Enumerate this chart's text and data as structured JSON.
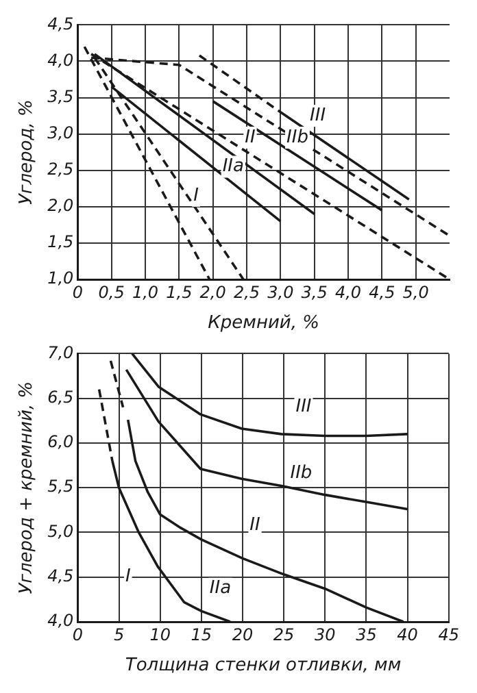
{
  "chart_data": [
    {
      "type": "line",
      "xlabel": "Кремний, %",
      "ylabel": "Углерод, %",
      "xlim": [
        0,
        5.5
      ],
      "ylim": [
        1.0,
        4.5
      ],
      "xticks": [
        0,
        {
          "value": 0.5,
          "label": "0,5"
        },
        {
          "value": 1.0,
          "label": "1,0"
        },
        {
          "value": 1.5,
          "label": "1,5"
        },
        {
          "value": 2.0,
          "label": "2,0"
        },
        {
          "value": 2.5,
          "label": "2,5"
        },
        {
          "value": 3.0,
          "label": "3,0"
        },
        {
          "value": 3.5,
          "label": "3,5"
        },
        {
          "value": 4.0,
          "label": "4,0"
        },
        {
          "value": 4.5,
          "label": "4,5"
        },
        {
          "value": 5.0,
          "label": "5,0"
        }
      ],
      "yticks": [
        {
          "value": 1.0,
          "label": "1,0"
        },
        {
          "value": 1.5,
          "label": "1,5"
        },
        {
          "value": 2.0,
          "label": "2,0"
        },
        {
          "value": 2.5,
          "label": "2,5"
        },
        {
          "value": 3.0,
          "label": "3,0"
        },
        {
          "value": 3.5,
          "label": "3,5"
        },
        {
          "value": 4.0,
          "label": "4,0"
        },
        {
          "value": 4.5,
          "label": "4,5"
        }
      ],
      "grid": true,
      "legend": false,
      "marker": "none",
      "series": [
        {
          "color": "#1a1a1a",
          "line_style": "dashed",
          "x": [
            0.1,
            1.95
          ],
          "values": [
            4.2,
            1.0
          ]
        },
        {
          "color": "#1a1a1a",
          "line_style": "dashed",
          "x": [
            0.25,
            2.45
          ],
          "values": [
            4.05,
            1.0
          ]
        },
        {
          "color": "#1a1a1a",
          "line_style": "solid",
          "x": [
            0.5,
            3.0
          ],
          "values": [
            3.65,
            1.8
          ]
        },
        {
          "color": "#1a1a1a",
          "line_style": "solid",
          "x": [
            0.25,
            3.5
          ],
          "values": [
            4.1,
            1.9
          ]
        },
        {
          "color": "#1a1a1a",
          "line_style": "dashed",
          "x": [
            0.2,
            5.5
          ],
          "values": [
            4.1,
            1.0
          ]
        },
        {
          "color": "#1a1a1a",
          "line_style": "dashed",
          "x": [
            0.2,
            1.5,
            5.5
          ],
          "values": [
            4.05,
            3.95,
            1.6
          ]
        },
        {
          "color": "#1a1a1a",
          "line_style": "solid",
          "x": [
            2.0,
            4.5
          ],
          "values": [
            3.45,
            1.95
          ]
        },
        {
          "color": "#1a1a1a",
          "line_style": "dashed",
          "x": [
            1.8,
            3.0
          ],
          "values": [
            4.08,
            3.3
          ]
        },
        {
          "color": "#1a1a1a",
          "line_style": "solid",
          "x": [
            3.0,
            4.9
          ],
          "values": [
            3.3,
            2.1
          ]
        }
      ],
      "annotations": [
        {
          "text": "I",
          "x": 1.75,
          "y": 2.15
        },
        {
          "text": "IIa",
          "x": 2.3,
          "y": 2.55
        },
        {
          "text": "II",
          "x": 2.55,
          "y": 2.95
        },
        {
          "text": "IIb",
          "x": 3.25,
          "y": 2.95
        },
        {
          "text": "III",
          "x": 3.55,
          "y": 3.25
        }
      ]
    },
    {
      "type": "line",
      "xlabel": "Толщина стенки отливки, мм",
      "ylabel": "Углерод + кремний, %",
      "xlim": [
        0,
        45
      ],
      "ylim": [
        4.0,
        7.0
      ],
      "xticks": [
        0,
        5,
        10,
        15,
        20,
        25,
        30,
        35,
        40,
        45
      ],
      "yticks": [
        {
          "value": 4.0,
          "label": "4,0"
        },
        {
          "value": 4.5,
          "label": "4,5"
        },
        {
          "value": 5.0,
          "label": "5,0"
        },
        {
          "value": 5.5,
          "label": "5,5"
        },
        {
          "value": 6.0,
          "label": "6,0"
        },
        {
          "value": 6.5,
          "label": "6,5"
        },
        {
          "value": 7.0,
          "label": "7,0"
        }
      ],
      "grid": true,
      "legend": false,
      "marker": "none",
      "series": [
        {
          "color": "#1a1a1a",
          "line_style": "dashed",
          "x": [
            2.6,
            4.2
          ],
          "values": [
            6.6,
            5.8
          ]
        },
        {
          "color": "#1a1a1a",
          "line_style": "solid",
          "x": [
            4.2,
            5.0,
            7.4,
            9.7,
            12.9,
            15,
            18.5
          ],
          "values": [
            5.8,
            5.5,
            5.0,
            4.62,
            4.22,
            4.12,
            4.0
          ]
        },
        {
          "color": "#1a1a1a",
          "line_style": "dashed",
          "x": [
            4.0,
            5.5
          ],
          "values": [
            6.92,
            6.4
          ]
        },
        {
          "color": "#1a1a1a",
          "line_style": "solid",
          "x": [
            6.1,
            7,
            8.5,
            10,
            12.5,
            15,
            20,
            25,
            30,
            35,
            39.5
          ],
          "values": [
            6.26,
            5.8,
            5.45,
            5.2,
            5.05,
            4.92,
            4.71,
            4.53,
            4.37,
            4.16,
            4.0
          ]
        },
        {
          "color": "#1a1a1a",
          "line_style": "solid",
          "x": [
            5.9,
            9.8,
            14.9,
            19.9,
            24.7,
            30,
            35,
            40
          ],
          "values": [
            6.82,
            6.24,
            5.71,
            5.6,
            5.52,
            5.42,
            5.34,
            5.26
          ]
        },
        {
          "color": "#1a1a1a",
          "line_style": "solid",
          "x": [
            6.6,
            9.8,
            14.9,
            19.9,
            24.7,
            30,
            35,
            40
          ],
          "values": [
            7.0,
            6.63,
            6.32,
            6.16,
            6.1,
            6.08,
            6.08,
            6.1
          ]
        }
      ],
      "annotations": [
        {
          "text": "III",
          "x": 27.4,
          "y": 6.4
        },
        {
          "text": "IIb",
          "x": 27.1,
          "y": 5.66
        },
        {
          "text": "II",
          "x": 21.5,
          "y": 5.08
        },
        {
          "text": "I",
          "x": 6.1,
          "y": 4.5
        },
        {
          "text": "IIa",
          "x": 17.3,
          "y": 4.37
        }
      ]
    }
  ]
}
